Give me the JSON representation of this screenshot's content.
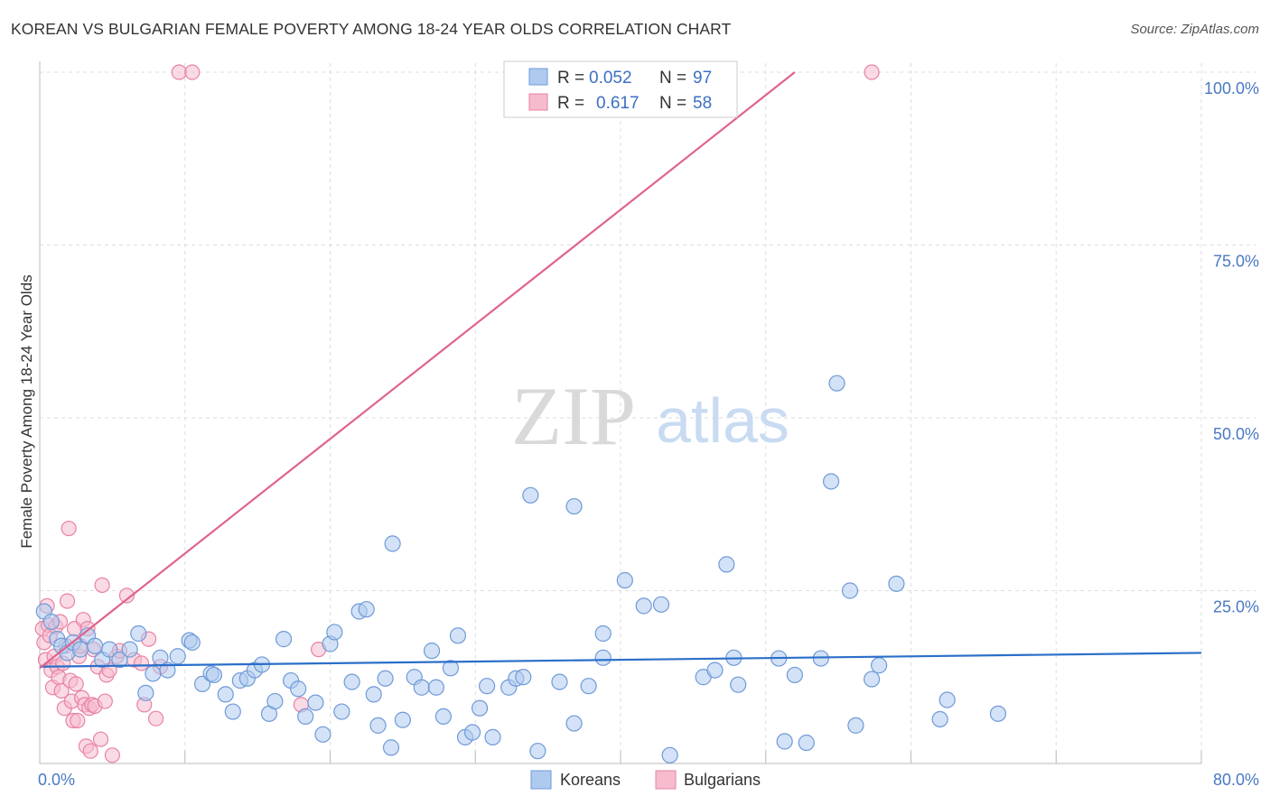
{
  "title": "KOREAN VS BULGARIAN FEMALE POVERTY AMONG 18-24 YEAR OLDS CORRELATION CHART",
  "source": "Source: ZipAtlas.com",
  "watermark": {
    "zip": "ZIP",
    "atlas": "atlas"
  },
  "colors": {
    "korean_fill": "#aecbef",
    "korean_stroke": "#6f9ad8",
    "korean_line": "#2a6fc9",
    "bulgarian_fill": "#f6bccd",
    "bulgarian_stroke": "#e882a4",
    "bulgarian_line": "#e0638d",
    "grid": "#dddddd",
    "tick_label": "#4a78c2"
  },
  "legend": {
    "korean": {
      "r_label": "R = ",
      "r_value": "0.052",
      "n_label": "N = ",
      "n_value": "97"
    },
    "bulgarian": {
      "r_label": "R = ",
      "r_value": "0.617",
      "n_label": "N = ",
      "n_value": "58"
    }
  },
  "bottom_legend": {
    "korean": "Koreans",
    "bulgarian": "Bulgarians"
  },
  "chart_data": {
    "type": "scatter",
    "title": "KOREAN VS BULGARIAN FEMALE POVERTY AMONG 18-24 YEAR OLDS CORRELATION CHART",
    "xlabel": "",
    "ylabel": "Female Poverty Among 18-24 Year Olds",
    "xlim": [
      0,
      80
    ],
    "ylim": [
      0,
      100
    ],
    "x_tick_labels": [
      {
        "value": 0,
        "label": "0.0%"
      },
      {
        "value": 80,
        "label": "80.0%"
      }
    ],
    "y_tick_labels": [
      {
        "value": 25,
        "label": "25.0%"
      },
      {
        "value": 50,
        "label": "50.0%"
      },
      {
        "value": 75,
        "label": "75.0%"
      },
      {
        "value": 100,
        "label": "100.0%"
      }
    ],
    "grid": true,
    "legend_position": "top-center",
    "series": [
      {
        "name": "Koreans",
        "points": [
          [
            0.3,
            22
          ],
          [
            0.8,
            20.5
          ],
          [
            1.2,
            18
          ],
          [
            1.5,
            17
          ],
          [
            1.9,
            16
          ],
          [
            2.3,
            17.5
          ],
          [
            2.8,
            16.5
          ],
          [
            3.3,
            18.5
          ],
          [
            3.8,
            17
          ],
          [
            4.3,
            15
          ],
          [
            4.8,
            16.5
          ],
          [
            5.5,
            15
          ],
          [
            6.2,
            16.5
          ],
          [
            6.8,
            18.8
          ],
          [
            7.3,
            10.2
          ],
          [
            7.8,
            13
          ],
          [
            8.3,
            15.3
          ],
          [
            8.8,
            13.5
          ],
          [
            9.5,
            15.5
          ],
          [
            10.3,
            17.8
          ],
          [
            10.5,
            17.5
          ],
          [
            11.2,
            11.5
          ],
          [
            11.8,
            13
          ],
          [
            12,
            12.8
          ],
          [
            12.8,
            10
          ],
          [
            13.3,
            7.5
          ],
          [
            13.8,
            12
          ],
          [
            14.3,
            12.3
          ],
          [
            14.8,
            13.5
          ],
          [
            15.3,
            14.3
          ],
          [
            15.8,
            7.2
          ],
          [
            16.2,
            9
          ],
          [
            16.8,
            18
          ],
          [
            17.3,
            12
          ],
          [
            17.8,
            10.8
          ],
          [
            18.3,
            6.8
          ],
          [
            19,
            8.8
          ],
          [
            19.5,
            4.2
          ],
          [
            20,
            17.3
          ],
          [
            20.3,
            19
          ],
          [
            20.8,
            7.5
          ],
          [
            21.5,
            11.8
          ],
          [
            22,
            22
          ],
          [
            22.5,
            22.3
          ],
          [
            23,
            10
          ],
          [
            23.3,
            5.5
          ],
          [
            23.8,
            12.3
          ],
          [
            24.2,
            2.3
          ],
          [
            24.3,
            31.8
          ],
          [
            25,
            6.3
          ],
          [
            25.8,
            12.5
          ],
          [
            26.3,
            11
          ],
          [
            27,
            16.3
          ],
          [
            27.3,
            11
          ],
          [
            27.8,
            6.8
          ],
          [
            28.3,
            13.8
          ],
          [
            28.8,
            18.5
          ],
          [
            29.3,
            3.8
          ],
          [
            29.8,
            4.5
          ],
          [
            30.3,
            8
          ],
          [
            30.8,
            11.2
          ],
          [
            31.2,
            3.8
          ],
          [
            32.3,
            11
          ],
          [
            32.8,
            12.3
          ],
          [
            33.3,
            12.5
          ],
          [
            33.8,
            38.8
          ],
          [
            34.3,
            1.8
          ],
          [
            35.8,
            11.8
          ],
          [
            36.8,
            37.2
          ],
          [
            36.8,
            5.8
          ],
          [
            37.8,
            11.2
          ],
          [
            38.8,
            18.8
          ],
          [
            38.8,
            15.3
          ],
          [
            40.3,
            26.5
          ],
          [
            41.6,
            22.8
          ],
          [
            42.8,
            23
          ],
          [
            43.4,
            1.2
          ],
          [
            45.7,
            12.5
          ],
          [
            46.5,
            13.5
          ],
          [
            47.3,
            28.8
          ],
          [
            47.8,
            15.3
          ],
          [
            48.1,
            11.4
          ],
          [
            50.9,
            15.2
          ],
          [
            51.3,
            3.2
          ],
          [
            52,
            12.8
          ],
          [
            52.8,
            3
          ],
          [
            53.8,
            15.2
          ],
          [
            54.5,
            40.8
          ],
          [
            54.9,
            55
          ],
          [
            55.8,
            25
          ],
          [
            56.2,
            5.5
          ],
          [
            57.3,
            12.2
          ],
          [
            57.8,
            14.2
          ],
          [
            59,
            26
          ],
          [
            62,
            6.4
          ],
          [
            62.5,
            9.2
          ],
          [
            66,
            7.2
          ]
        ],
        "trend": {
          "x": [
            0,
            80
          ],
          "y": [
            14.0,
            16.0
          ]
        }
      },
      {
        "name": "Bulgarians",
        "points": [
          [
            0.2,
            19.5
          ],
          [
            0.3,
            17.5
          ],
          [
            0.4,
            15
          ],
          [
            0.5,
            22.8
          ],
          [
            0.6,
            20
          ],
          [
            0.7,
            18.5
          ],
          [
            0.8,
            13.5
          ],
          [
            0.9,
            11
          ],
          [
            1,
            15.5
          ],
          [
            1.1,
            19.8
          ],
          [
            1.2,
            14
          ],
          [
            1.3,
            12.5
          ],
          [
            1.4,
            20.5
          ],
          [
            1.5,
            10.5
          ],
          [
            1.6,
            14.5
          ],
          [
            1.7,
            8
          ],
          [
            1.8,
            17
          ],
          [
            1.9,
            23.5
          ],
          [
            2,
            34
          ],
          [
            2.1,
            12
          ],
          [
            2.2,
            9
          ],
          [
            2.3,
            6.2
          ],
          [
            2.4,
            19.5
          ],
          [
            2.5,
            11.5
          ],
          [
            2.6,
            6.2
          ],
          [
            2.7,
            15.5
          ],
          [
            2.8,
            17
          ],
          [
            2.9,
            9.5
          ],
          [
            3,
            20.8
          ],
          [
            3.1,
            8.5
          ],
          [
            3.2,
            2.5
          ],
          [
            3.3,
            19.5
          ],
          [
            3.4,
            8
          ],
          [
            3.5,
            1.8
          ],
          [
            3.6,
            8.5
          ],
          [
            3.7,
            16.5
          ],
          [
            3.8,
            8.3
          ],
          [
            4,
            14
          ],
          [
            4.2,
            3.5
          ],
          [
            4.3,
            25.8
          ],
          [
            4.5,
            9
          ],
          [
            4.6,
            12.8
          ],
          [
            4.8,
            13.5
          ],
          [
            5,
            1.2
          ],
          [
            5.3,
            15.5
          ],
          [
            5.5,
            16.3
          ],
          [
            6,
            24.3
          ],
          [
            6.5,
            15
          ],
          [
            7,
            14.5
          ],
          [
            7.2,
            8.5
          ],
          [
            7.5,
            18
          ],
          [
            8,
            6.5
          ],
          [
            8.3,
            14
          ],
          [
            9.6,
            100
          ],
          [
            10.5,
            100
          ],
          [
            18,
            8.5
          ],
          [
            19.2,
            16.5
          ],
          [
            57.3,
            100
          ]
        ],
        "trend": {
          "x": [
            0,
            52
          ],
          "y": [
            13.8,
            100
          ]
        }
      }
    ]
  }
}
